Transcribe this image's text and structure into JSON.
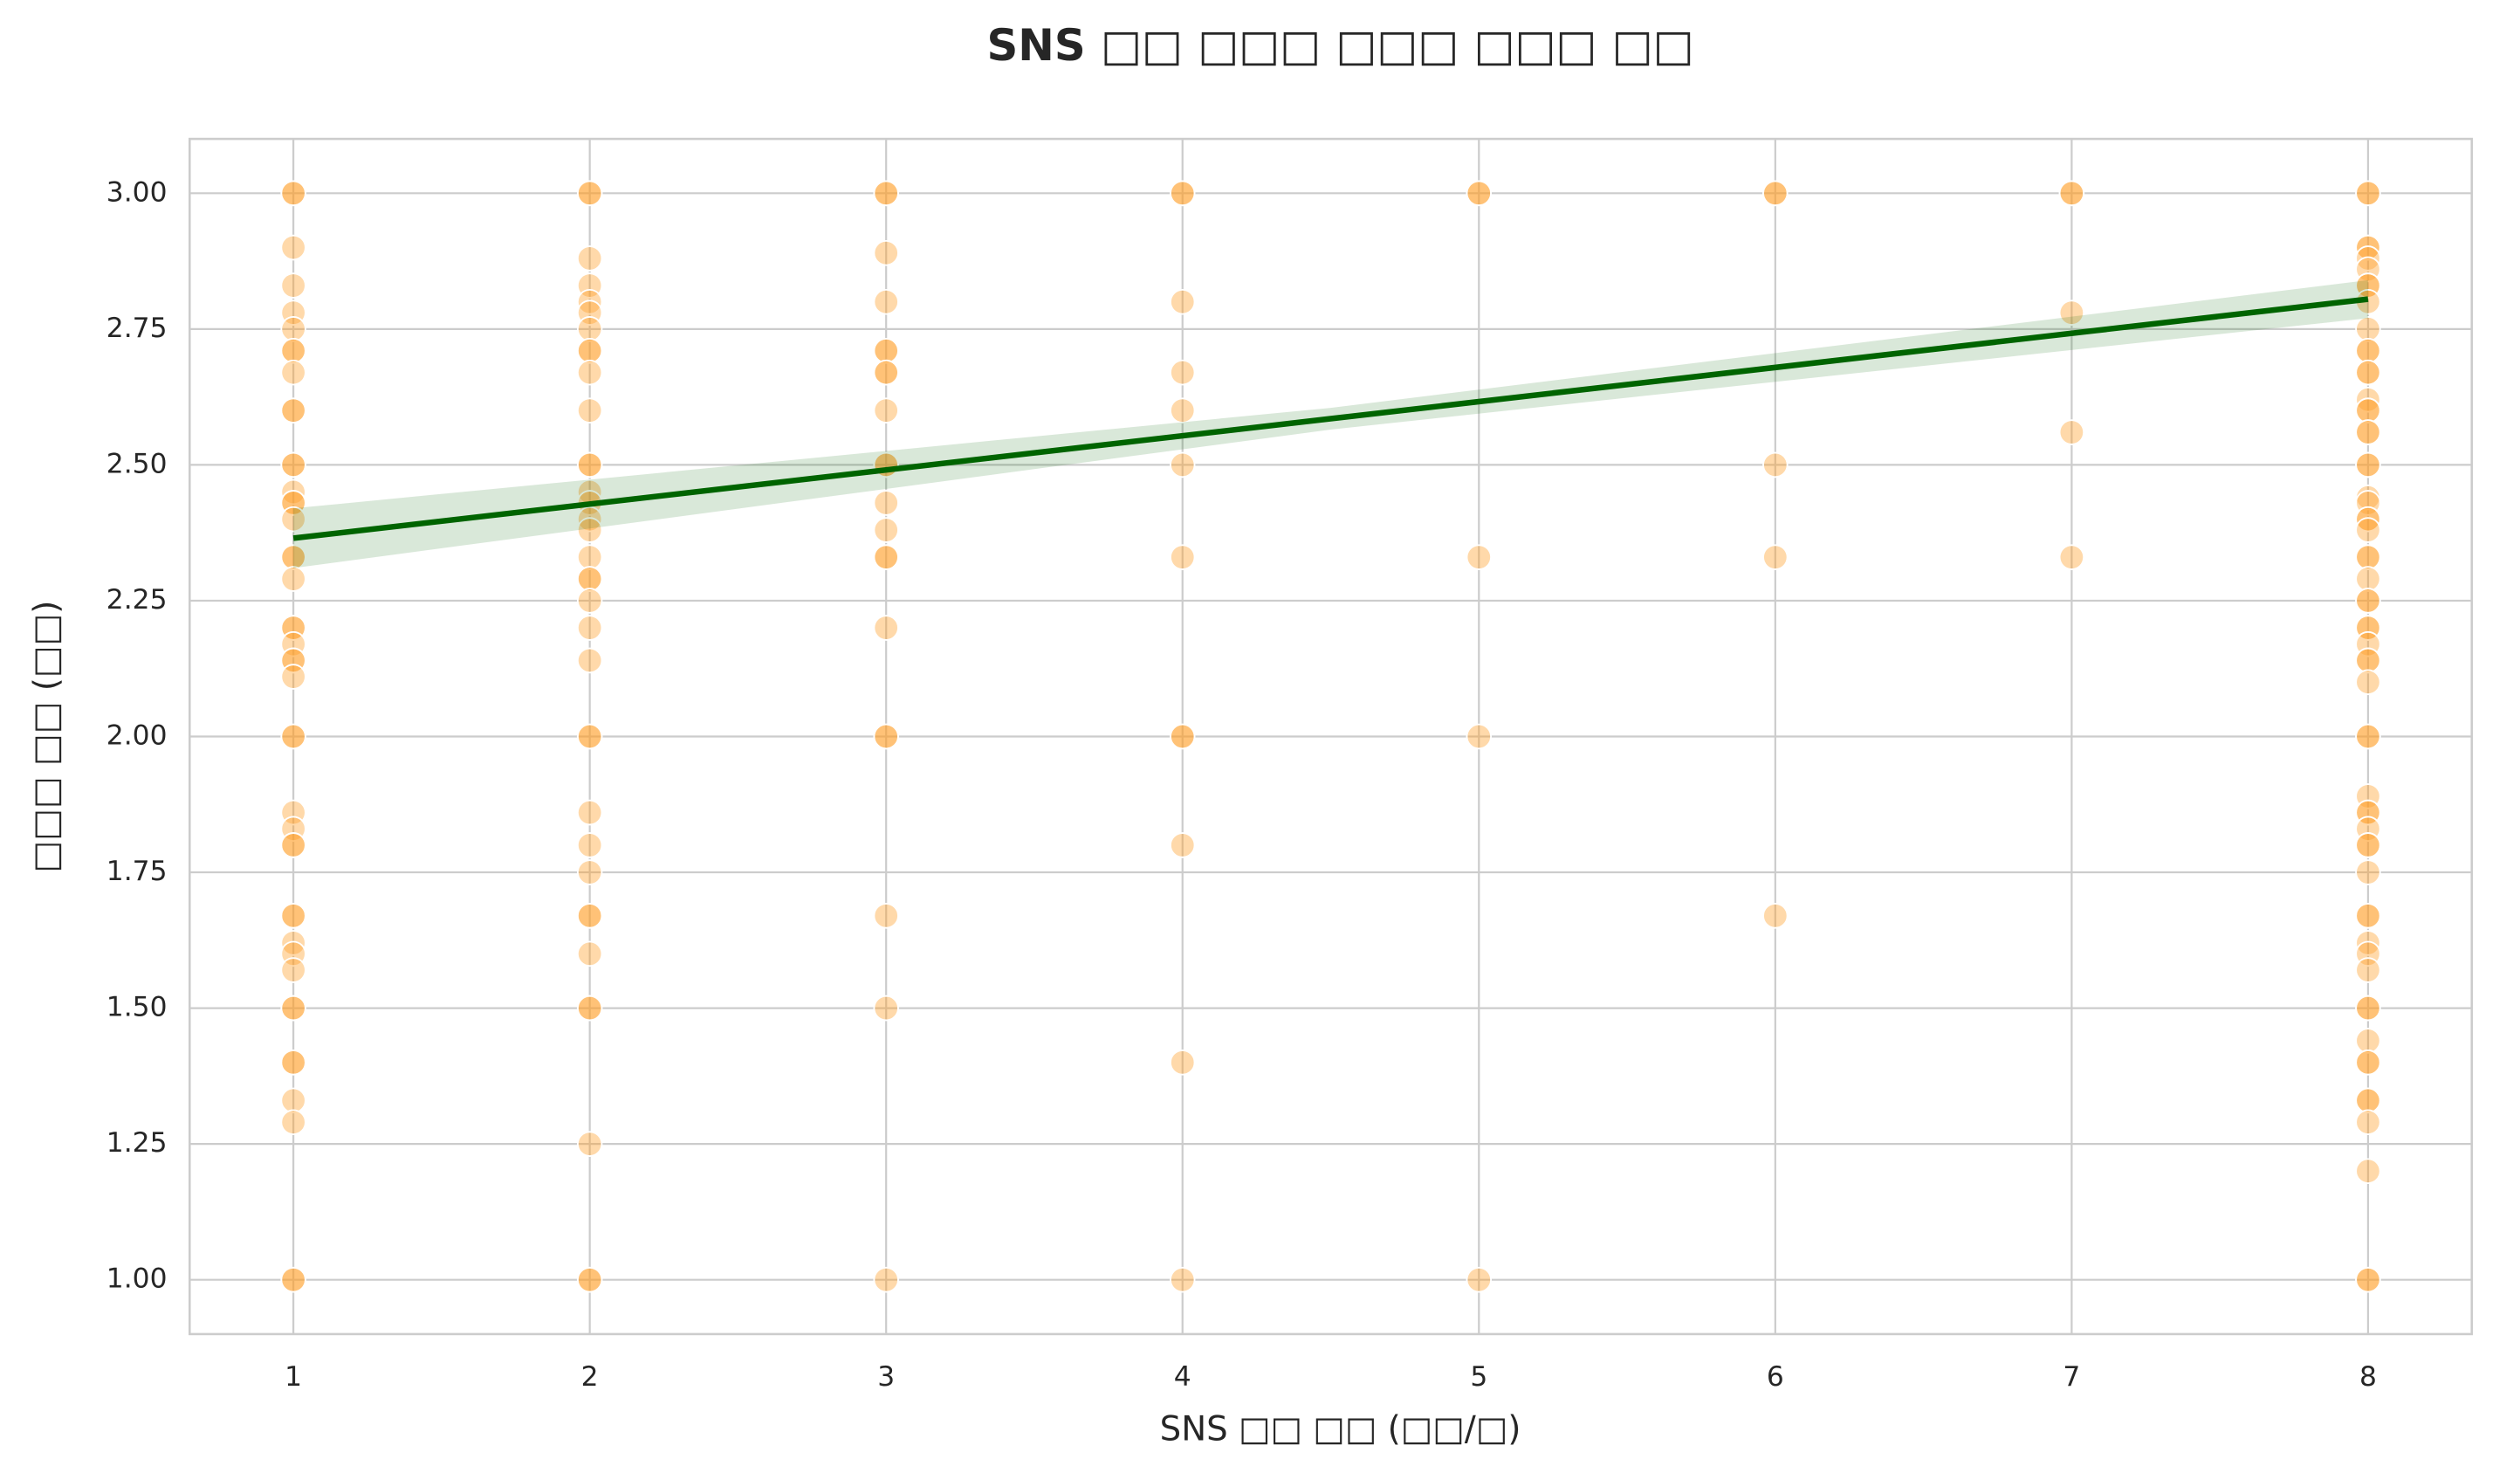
{
  "chart_data": {
    "type": "scatter",
    "title": "SNS □□ □□□ □□□ □□□ □□",
    "x_label": "SNS □□ □□ (□□/□)",
    "y_label": "□□□ □□ (□□)",
    "xlim": [
      0.65,
      8.35
    ],
    "ylim": [
      0.9,
      3.1
    ],
    "xticks": [
      1,
      2,
      3,
      4,
      5,
      6,
      7,
      8
    ],
    "yticks": [
      {
        "value": 1,
        "label": "1.00"
      },
      {
        "value": 1.25,
        "label": "1.25"
      },
      {
        "value": 1.5,
        "label": "1.50"
      },
      {
        "value": 1.75,
        "label": "1.75"
      },
      {
        "value": 2,
        "label": "2.00"
      },
      {
        "value": 2.25,
        "label": "2.25"
      },
      {
        "value": 2.5,
        "label": "2.50"
      },
      {
        "value": 2.75,
        "label": "2.75"
      },
      {
        "value": 3,
        "label": "3.00"
      }
    ],
    "grid": true,
    "series": [
      {
        "color": "#ffa12b",
        "x": [
          1,
          1,
          1,
          1,
          1,
          1,
          1,
          1,
          1,
          1,
          1,
          1,
          1,
          1,
          1,
          1,
          1,
          1,
          1,
          1,
          1,
          1,
          1,
          1,
          1,
          1,
          1,
          1,
          1,
          1,
          1,
          1,
          1,
          1,
          1,
          1,
          1,
          1,
          1,
          1,
          1,
          1,
          1,
          1,
          1,
          2,
          2,
          2,
          2,
          2,
          2,
          2,
          2,
          2,
          2,
          2,
          2,
          2,
          2,
          2,
          2,
          2,
          2,
          2,
          2,
          2,
          2,
          2,
          2,
          2,
          2,
          2,
          2,
          2,
          2,
          2,
          2,
          2,
          2,
          2,
          2,
          3,
          3,
          3,
          3,
          3,
          3,
          3,
          3,
          3,
          3,
          3,
          3,
          3,
          3,
          3,
          3,
          3,
          3,
          3,
          3,
          3,
          4,
          4,
          4,
          4,
          4,
          4,
          4,
          4,
          4,
          4,
          4,
          4,
          5,
          5,
          5,
          5,
          5,
          6,
          6,
          6,
          6,
          6,
          7,
          7,
          7,
          7,
          7,
          8,
          8,
          8,
          8,
          8,
          8,
          8,
          8,
          8,
          8,
          8,
          8,
          8,
          8,
          8,
          8,
          8,
          8,
          8,
          8,
          8,
          8,
          8,
          8,
          8,
          8,
          8,
          8,
          8,
          8,
          8,
          8,
          8,
          8,
          8,
          8,
          8,
          8,
          8,
          8,
          8,
          8,
          8,
          8,
          8,
          8,
          8,
          8,
          8,
          8,
          8,
          8,
          8,
          8,
          8,
          8,
          8,
          8,
          8,
          8,
          8,
          8
        ],
        "y": [
          3,
          3,
          2.9,
          2.83,
          2.78,
          2.75,
          2.71,
          2.71,
          2.67,
          2.6,
          2.6,
          2.5,
          2.5,
          2.45,
          2.43,
          2.43,
          2.4,
          2.33,
          2.33,
          2.29,
          2.2,
          2.2,
          2.17,
          2.14,
          2.14,
          2.11,
          2,
          2,
          1.86,
          1.83,
          1.8,
          1.8,
          1.67,
          1.67,
          1.62,
          1.6,
          1.57,
          1.5,
          1.5,
          1.4,
          1.4,
          1.33,
          1.29,
          1,
          1,
          3,
          3,
          2.88,
          2.83,
          2.8,
          2.78,
          2.75,
          2.71,
          2.71,
          2.67,
          2.6,
          2.5,
          2.5,
          2.45,
          2.43,
          2.4,
          2.38,
          2.33,
          2.29,
          2.29,
          2.25,
          2.2,
          2.14,
          2,
          2,
          1.86,
          1.8,
          1.75,
          1.67,
          1.67,
          1.6,
          1.5,
          1.5,
          1.25,
          1,
          1,
          3,
          3,
          2.89,
          2.8,
          2.71,
          2.71,
          2.67,
          2.67,
          2.6,
          2.5,
          2.5,
          2.43,
          2.38,
          2.33,
          2.33,
          2.2,
          2,
          2,
          1.67,
          1.5,
          1,
          3,
          3,
          2.8,
          2.67,
          2.6,
          2.5,
          2.33,
          2,
          2,
          1.8,
          1.4,
          1,
          3,
          3,
          2.33,
          2,
          1,
          3,
          3,
          2.5,
          2.33,
          1.67,
          3,
          3,
          2.78,
          2.56,
          2.33,
          3,
          3,
          2.9,
          2.9,
          2.88,
          2.86,
          2.83,
          2.83,
          2.8,
          2.75,
          2.71,
          2.71,
          2.67,
          2.67,
          2.62,
          2.6,
          2.6,
          2.56,
          2.56,
          2.5,
          2.5,
          2.44,
          2.43,
          2.4,
          2.4,
          2.38,
          2.33,
          2.33,
          2.29,
          2.25,
          2.25,
          2.2,
          2.2,
          2.17,
          2.14,
          2.14,
          2.1,
          2,
          2,
          1.89,
          1.86,
          1.86,
          1.83,
          1.8,
          1.8,
          1.75,
          1.67,
          1.67,
          1.62,
          1.6,
          1.57,
          1.5,
          1.5,
          1.44,
          1.4,
          1.4,
          1.33,
          1.33,
          1.29,
          1.2,
          1,
          1
        ]
      }
    ],
    "regression": {
      "color": "#006400",
      "x": [
        1,
        4.5,
        8
      ],
      "values": [
        2.365,
        2.585,
        2.805
      ],
      "ci_lower": [
        2.31,
        2.565,
        2.77
      ],
      "ci_upper": [
        2.42,
        2.605,
        2.84
      ]
    }
  }
}
